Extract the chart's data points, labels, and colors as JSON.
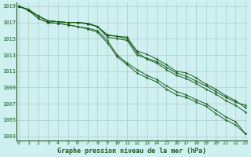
{
  "title": "Graphe pression niveau de la mer (hPa)",
  "bg_color": "#cff0f0",
  "line_color": "#1a5c1a",
  "grid_color": "#b0c8c8",
  "xlim": [
    -0.2,
    23.2
  ],
  "ylim": [
    1002.5,
    1019.5
  ],
  "yticks": [
    1003,
    1005,
    1007,
    1009,
    1011,
    1013,
    1015,
    1017,
    1019
  ],
  "xticks": [
    0,
    1,
    2,
    3,
    4,
    5,
    6,
    7,
    8,
    9,
    10,
    11,
    12,
    13,
    14,
    15,
    16,
    17,
    18,
    19,
    20,
    21,
    22,
    23
  ],
  "series1": [
    1019.0,
    1018.6,
    1017.8,
    1017.2,
    1017.1,
    1017.0,
    1017.0,
    1016.8,
    1016.5,
    1015.2,
    1015.0,
    1014.8,
    1013.0,
    1012.6,
    1012.2,
    1011.5,
    1010.8,
    1010.4,
    1009.8,
    1009.2,
    1008.5,
    1007.8,
    1007.2,
    1006.8
  ],
  "series2": [
    1019.0,
    1018.6,
    1017.8,
    1017.2,
    1017.1,
    1017.0,
    1017.0,
    1016.9,
    1016.5,
    1015.4,
    1015.3,
    1015.0,
    1013.3,
    1012.5,
    1012.0,
    1011.2,
    1010.5,
    1010.1,
    1009.5,
    1008.8,
    1008.2,
    1007.4,
    1006.8,
    1006.0
  ],
  "series3": [
    1019.0,
    1018.6,
    1017.8,
    1017.2,
    1017.1,
    1017.0,
    1017.0,
    1016.9,
    1016.5,
    1015.5,
    1015.3,
    1015.2,
    1013.5,
    1013.1,
    1012.5,
    1011.8,
    1011.0,
    1010.8,
    1010.2,
    1009.4,
    1008.8,
    1008.0,
    1007.4,
    1006.5
  ],
  "series_lower1": [
    1019.0,
    1018.5,
    1017.5,
    1017.0,
    1016.9,
    1016.7,
    1016.5,
    1016.3,
    1016.0,
    1014.8,
    1013.0,
    1012.0,
    1011.2,
    1010.5,
    1010.0,
    1009.2,
    1008.5,
    1008.1,
    1007.5,
    1007.0,
    1006.2,
    1005.4,
    1004.8,
    1003.3
  ],
  "series_lower2": [
    1019.0,
    1018.5,
    1017.5,
    1017.0,
    1016.9,
    1016.7,
    1016.5,
    1016.2,
    1015.8,
    1014.5,
    1012.8,
    1011.8,
    1010.8,
    1010.2,
    1009.7,
    1008.8,
    1008.1,
    1007.8,
    1007.2,
    1006.7,
    1005.8,
    1005.0,
    1004.4,
    1003.3
  ]
}
